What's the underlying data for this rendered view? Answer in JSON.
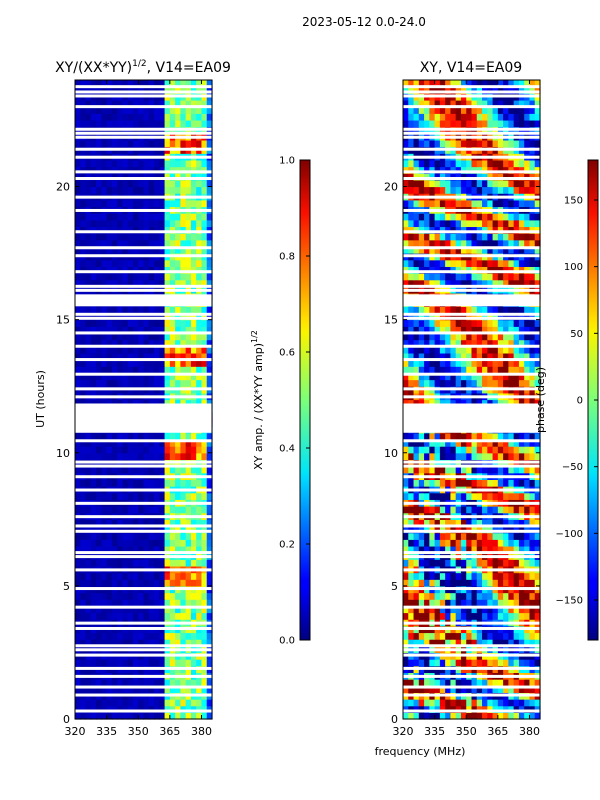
{
  "chart_data": {
    "type": "heatmap",
    "suptitle": "2023-05-12 0.0-24.0",
    "xlabel": "frequency (MHz)",
    "panels": [
      {
        "id": "amplitude",
        "title_main": "XY/(XX*YY)",
        "title_sup": "1/2",
        "title_tail": ", V14=EA09",
        "ylabel": "UT (hours)",
        "xlim": [
          320,
          385
        ],
        "ylim": [
          0,
          24
        ],
        "xticks": [
          320,
          335,
          350,
          365,
          380
        ],
        "yticks": [
          0,
          5,
          10,
          15,
          20
        ],
        "colorbar": {
          "label_main": "XY amp. / (XX*YY amp)",
          "label_sup": "1/2",
          "range": [
            0.0,
            1.0
          ],
          "ticks": [
            "0.0",
            "0.2",
            "0.4",
            "0.6",
            "0.8",
            "1.0"
          ],
          "tick_values": [
            0.0,
            0.2,
            0.4,
            0.6,
            0.8,
            1.0
          ]
        }
      },
      {
        "id": "phase",
        "title": "XY, V14=EA09",
        "xlim": [
          320,
          385
        ],
        "ylim": [
          0,
          24
        ],
        "xticks": [
          320,
          335,
          350,
          365,
          380
        ],
        "yticks": [
          0,
          5,
          10,
          15,
          20
        ],
        "colorbar": {
          "label": "phase (deg)",
          "range": [
            -180,
            180
          ],
          "ticks": [
            "−150",
            "−100",
            "−50",
            "0",
            "50",
            "100",
            "150"
          ],
          "tick_values": [
            -150,
            -100,
            -50,
            0,
            50,
            100,
            150
          ]
        }
      }
    ],
    "flagged_time_ranges_hours": [
      [
        10.75,
        11.85
      ],
      [
        15.5,
        15.95
      ]
    ],
    "rfi_channels_mhz": [
      364,
      366,
      368,
      370,
      372,
      375,
      378,
      381
    ],
    "high_amplitude_times_hours": [
      10.0,
      5.3,
      13.5,
      21.5
    ]
  },
  "flagged_rows_hours": [
    0.3,
    0.9,
    1.2,
    1.6,
    1.9,
    2.4,
    2.6,
    2.75,
    3.4,
    3.6,
    4.2,
    4.9,
    5.6,
    6.1,
    6.25,
    7.05,
    7.25,
    7.6,
    8.1,
    8.6,
    9.1,
    9.5,
    9.65,
    10.45,
    12.1,
    12.4,
    12.95,
    13.5,
    14.0,
    14.5,
    15.05,
    15.2,
    16.1,
    16.25,
    16.8,
    17.4,
    17.7,
    18.3,
    19.1,
    19.6,
    20.3,
    20.55,
    21.1,
    21.4,
    21.85,
    22.0,
    22.15,
    23.0,
    23.4,
    23.55,
    23.75
  ]
}
